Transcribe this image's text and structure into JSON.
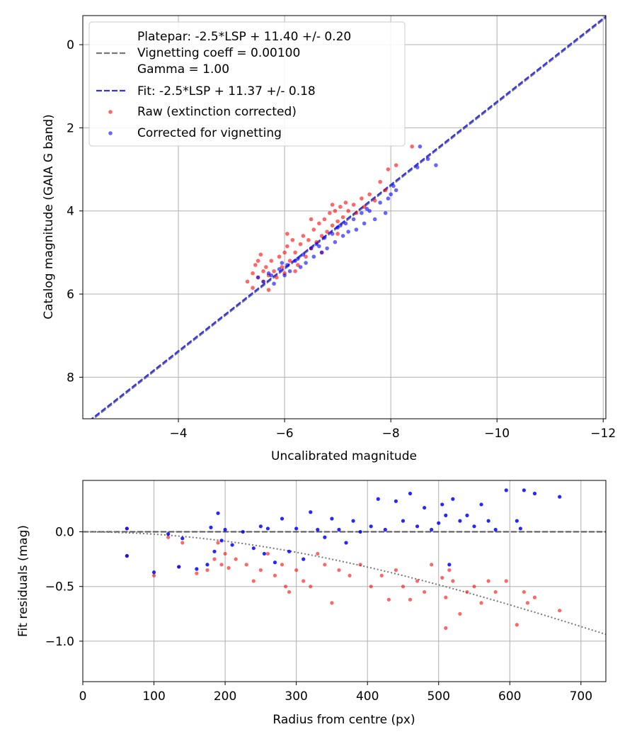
{
  "chart_data": [
    {
      "type": "scatter",
      "xlabel": "Uncalibrated magnitude",
      "ylabel": "Catalog magnitude (GAIA G band)",
      "xlim": [
        -2.2,
        -12.05
      ],
      "ylim": [
        9.0,
        -0.7
      ],
      "xticks": [
        -4,
        -6,
        -8,
        -10,
        -12
      ],
      "yticks": [
        0,
        2,
        4,
        6,
        8
      ],
      "grid": true,
      "legend": {
        "position": "top-left",
        "entries": [
          {
            "label_lines": [
              "Platepar: -2.5*LSP + 11.40 +/- 0.20",
              "Vignetting coeff = 0.00100",
              "Gamma = 1.00"
            ],
            "style": "dashed",
            "color": "#777777"
          },
          {
            "label_lines": [
              "Fit: -2.5*LSP + 11.37 +/- 0.18"
            ],
            "style": "dashed",
            "color": "#3333ee"
          },
          {
            "label_lines": [
              "Raw (extinction corrected)"
            ],
            "style": "marker",
            "color": "#ff0000"
          },
          {
            "label_lines": [
              "Corrected for vignetting"
            ],
            "style": "marker",
            "color": "#0000ff"
          }
        ]
      },
      "lines": [
        {
          "name": "Platepar",
          "slope": 1.0,
          "intercept": 11.4,
          "color": "#777777"
        },
        {
          "name": "Fit",
          "slope": 1.0,
          "intercept": 11.37,
          "color": "#3333ee"
        }
      ],
      "series": [
        {
          "name": "Raw (extinction corrected)",
          "color": "#ff0000",
          "points": [
            [
              -5.3,
              5.7
            ],
            [
              -5.4,
              5.5
            ],
            [
              -5.45,
              5.3
            ],
            [
              -5.5,
              5.6
            ],
            [
              -5.5,
              5.2
            ],
            [
              -5.6,
              5.45
            ],
            [
              -5.6,
              5.7
            ],
            [
              -5.65,
              5.35
            ],
            [
              -5.7,
              5.55
            ],
            [
              -5.75,
              5.2
            ],
            [
              -5.8,
              5.45
            ],
            [
              -5.85,
              5.6
            ],
            [
              -5.9,
              5.1
            ],
            [
              -5.95,
              5.35
            ],
            [
              -6.0,
              5.0
            ],
            [
              -6.0,
              5.5
            ],
            [
              -6.05,
              4.85
            ],
            [
              -6.1,
              5.2
            ],
            [
              -6.15,
              4.7
            ],
            [
              -6.2,
              5.0
            ],
            [
              -6.25,
              5.3
            ],
            [
              -6.3,
              4.8
            ],
            [
              -6.35,
              4.6
            ],
            [
              -6.4,
              5.1
            ],
            [
              -6.45,
              4.7
            ],
            [
              -6.5,
              4.9
            ],
            [
              -6.55,
              4.45
            ],
            [
              -6.6,
              4.75
            ],
            [
              -6.65,
              4.3
            ],
            [
              -6.7,
              4.6
            ],
            [
              -6.75,
              4.2
            ],
            [
              -6.8,
              4.5
            ],
            [
              -6.85,
              4.05
            ],
            [
              -6.9,
              4.35
            ],
            [
              -6.95,
              4.0
            ],
            [
              -7.0,
              4.25
            ],
            [
              -7.05,
              3.9
            ],
            [
              -7.1,
              4.15
            ],
            [
              -7.15,
              3.8
            ],
            [
              -7.2,
              4.0
            ],
            [
              -7.3,
              3.85
            ],
            [
              -7.35,
              4.05
            ],
            [
              -7.45,
              3.7
            ],
            [
              -7.5,
              3.9
            ],
            [
              -7.6,
              3.6
            ],
            [
              -7.7,
              3.75
            ],
            [
              -7.8,
              3.3
            ],
            [
              -7.9,
              3.5
            ],
            [
              -7.95,
              3.0
            ],
            [
              -8.1,
              2.9
            ],
            [
              -8.4,
              2.45
            ],
            [
              -5.4,
              5.85
            ],
            [
              -5.7,
              5.9
            ],
            [
              -6.2,
              5.45
            ],
            [
              -6.7,
              5.0
            ],
            [
              -7.0,
              4.55
            ],
            [
              -5.55,
              5.05
            ],
            [
              -6.05,
              4.55
            ],
            [
              -6.5,
              4.2
            ],
            [
              -6.9,
              3.85
            ]
          ]
        },
        {
          "name": "Corrected for vignetting",
          "color": "#0000ff",
          "points": [
            [
              -5.5,
              5.6
            ],
            [
              -5.6,
              5.7
            ],
            [
              -5.7,
              5.5
            ],
            [
              -5.8,
              5.75
            ],
            [
              -5.9,
              5.4
            ],
            [
              -6.0,
              5.55
            ],
            [
              -6.05,
              5.3
            ],
            [
              -6.1,
              5.45
            ],
            [
              -6.2,
              5.2
            ],
            [
              -6.3,
              5.35
            ],
            [
              -6.35,
              5.05
            ],
            [
              -6.4,
              5.25
            ],
            [
              -6.5,
              4.9
            ],
            [
              -6.55,
              5.1
            ],
            [
              -6.6,
              4.8
            ],
            [
              -6.7,
              5.0
            ],
            [
              -6.75,
              4.65
            ],
            [
              -6.8,
              4.9
            ],
            [
              -6.9,
              4.55
            ],
            [
              -6.95,
              4.75
            ],
            [
              -7.0,
              4.4
            ],
            [
              -7.1,
              4.6
            ],
            [
              -7.15,
              4.3
            ],
            [
              -7.2,
              4.5
            ],
            [
              -7.3,
              4.2
            ],
            [
              -7.35,
              4.45
            ],
            [
              -7.45,
              4.05
            ],
            [
              -7.5,
              4.3
            ],
            [
              -7.6,
              4.0
            ],
            [
              -7.7,
              4.2
            ],
            [
              -7.8,
              3.8
            ],
            [
              -7.9,
              4.05
            ],
            [
              -8.0,
              3.6
            ],
            [
              -8.05,
              3.4
            ],
            [
              -8.1,
              3.5
            ],
            [
              -8.5,
              2.95
            ],
            [
              -8.55,
              2.45
            ],
            [
              -8.7,
              2.75
            ],
            [
              -8.85,
              2.9
            ],
            [
              -5.75,
              5.55
            ],
            [
              -6.25,
              5.15
            ],
            [
              -6.65,
              4.85
            ],
            [
              -7.05,
              4.35
            ],
            [
              -7.55,
              3.95
            ],
            [
              -7.95,
              3.7
            ],
            [
              -5.95,
              5.25
            ]
          ]
        }
      ]
    },
    {
      "type": "scatter",
      "xlabel": "Radius from centre (px)",
      "ylabel": "Fit residuals (mag)",
      "xlim": [
        0,
        735
      ],
      "ylim": [
        -1.37,
        0.47
      ],
      "xticks": [
        0,
        100,
        200,
        300,
        400,
        500,
        600,
        700
      ],
      "yticks": [
        0.0,
        -0.5,
        -1.0
      ],
      "xtick_labels": [
        "0",
        "100",
        "200",
        "300",
        "400",
        "500",
        "600",
        "700"
      ],
      "ytick_labels": [
        "0.0",
        "−0.5",
        "−1.0"
      ],
      "grid": true,
      "lines": [
        {
          "name": "zero",
          "style": "dashed",
          "color": "#555555",
          "value": 0.0
        },
        {
          "name": "vignetting model",
          "style": "dotted",
          "color": "#777777",
          "coeff": 0.001
        }
      ],
      "series": [
        {
          "name": "Raw (extinction corrected)",
          "color": "#ff0000",
          "points": [
            [
              62,
              0.03
            ],
            [
              62,
              -0.22
            ],
            [
              100,
              -0.4
            ],
            [
              120,
              -0.05
            ],
            [
              135,
              -0.32
            ],
            [
              140,
              -0.1
            ],
            [
              160,
              -0.38
            ],
            [
              175,
              -0.35
            ],
            [
              185,
              -0.25
            ],
            [
              190,
              -0.1
            ],
            [
              195,
              -0.3
            ],
            [
              200,
              -0.2
            ],
            [
              205,
              -0.33
            ],
            [
              215,
              -0.25
            ],
            [
              230,
              -0.3
            ],
            [
              240,
              -0.45
            ],
            [
              250,
              -0.35
            ],
            [
              260,
              -0.2
            ],
            [
              270,
              -0.4
            ],
            [
              280,
              -0.3
            ],
            [
              285,
              -0.5
            ],
            [
              290,
              -0.55
            ],
            [
              300,
              -0.35
            ],
            [
              310,
              -0.45
            ],
            [
              320,
              -0.5
            ],
            [
              330,
              -0.2
            ],
            [
              340,
              -0.3
            ],
            [
              350,
              -0.65
            ],
            [
              360,
              -0.35
            ],
            [
              375,
              -0.4
            ],
            [
              390,
              -0.3
            ],
            [
              405,
              -0.5
            ],
            [
              420,
              -0.4
            ],
            [
              430,
              -0.62
            ],
            [
              440,
              -0.35
            ],
            [
              450,
              -0.5
            ],
            [
              460,
              -0.62
            ],
            [
              470,
              -0.45
            ],
            [
              480,
              -0.55
            ],
            [
              490,
              -0.3
            ],
            [
              505,
              -0.42
            ],
            [
              510,
              -0.6
            ],
            [
              510,
              -0.88
            ],
            [
              515,
              -0.35
            ],
            [
              520,
              -0.45
            ],
            [
              530,
              -0.75
            ],
            [
              540,
              -0.55
            ],
            [
              550,
              -0.5
            ],
            [
              560,
              -0.65
            ],
            [
              570,
              -0.45
            ],
            [
              580,
              -0.55
            ],
            [
              595,
              -0.45
            ],
            [
              610,
              -0.85
            ],
            [
              620,
              -0.55
            ],
            [
              625,
              -0.65
            ],
            [
              635,
              -0.6
            ],
            [
              670,
              -0.72
            ]
          ]
        },
        {
          "name": "Corrected for vignetting",
          "color": "#0000ff",
          "points": [
            [
              62,
              0.03
            ],
            [
              62,
              -0.22
            ],
            [
              100,
              -0.37
            ],
            [
              120,
              -0.02
            ],
            [
              135,
              -0.32
            ],
            [
              140,
              -0.06
            ],
            [
              160,
              -0.34
            ],
            [
              175,
              -0.3
            ],
            [
              180,
              0.04
            ],
            [
              185,
              -0.18
            ],
            [
              190,
              0.17
            ],
            [
              195,
              -0.08
            ],
            [
              200,
              0.02
            ],
            [
              210,
              -0.12
            ],
            [
              225,
              0.0
            ],
            [
              240,
              -0.15
            ],
            [
              250,
              0.05
            ],
            [
              255,
              -0.2
            ],
            [
              260,
              0.03
            ],
            [
              270,
              -0.28
            ],
            [
              280,
              0.12
            ],
            [
              290,
              -0.18
            ],
            [
              300,
              0.03
            ],
            [
              310,
              -0.25
            ],
            [
              320,
              0.18
            ],
            [
              330,
              0.02
            ],
            [
              340,
              -0.05
            ],
            [
              350,
              0.12
            ],
            [
              360,
              0.02
            ],
            [
              370,
              -0.1
            ],
            [
              380,
              0.1
            ],
            [
              390,
              0.0
            ],
            [
              405,
              0.05
            ],
            [
              415,
              0.3
            ],
            [
              425,
              0.02
            ],
            [
              440,
              0.28
            ],
            [
              450,
              0.1
            ],
            [
              460,
              0.35
            ],
            [
              470,
              0.05
            ],
            [
              480,
              0.22
            ],
            [
              490,
              0.02
            ],
            [
              500,
              0.08
            ],
            [
              505,
              0.25
            ],
            [
              510,
              0.15
            ],
            [
              515,
              -0.3
            ],
            [
              520,
              0.3
            ],
            [
              530,
              0.1
            ],
            [
              540,
              0.15
            ],
            [
              550,
              0.05
            ],
            [
              560,
              0.25
            ],
            [
              570,
              0.1
            ],
            [
              580,
              0.02
            ],
            [
              595,
              0.38
            ],
            [
              610,
              0.1
            ],
            [
              615,
              0.03
            ],
            [
              620,
              0.38
            ],
            [
              635,
              0.35
            ],
            [
              670,
              0.32
            ]
          ]
        }
      ]
    }
  ]
}
